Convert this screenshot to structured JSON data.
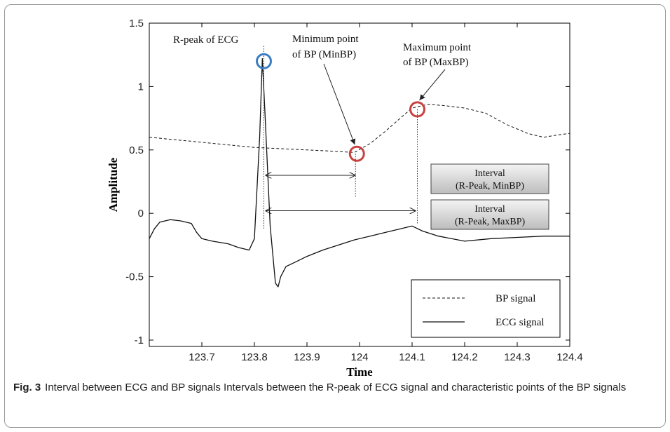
{
  "chart_data": {
    "type": "line",
    "xlabel": "Time",
    "ylabel": "Amplitude",
    "xlim": [
      123.6,
      124.4
    ],
    "ylim": [
      -1.05,
      1.5
    ],
    "xticks": [
      "123.7",
      "123.8",
      "123.9",
      "124",
      "124.1",
      "124.2",
      "124.3",
      "124.4"
    ],
    "yticks": [
      "1.5",
      "1",
      "0.5",
      "0",
      "-0.5",
      "-1"
    ],
    "series": [
      {
        "name": "BP signal",
        "style": "dashed",
        "x": [
          123.6,
          123.65,
          123.7,
          123.75,
          123.8,
          123.85,
          123.9,
          123.95,
          123.99,
          124.02,
          124.05,
          124.08,
          124.1,
          124.13,
          124.16,
          124.2,
          124.24,
          124.28,
          124.32,
          124.35,
          124.38,
          124.4
        ],
        "y": [
          0.6,
          0.58,
          0.56,
          0.54,
          0.52,
          0.51,
          0.5,
          0.49,
          0.48,
          0.55,
          0.65,
          0.76,
          0.83,
          0.86,
          0.85,
          0.83,
          0.79,
          0.7,
          0.63,
          0.6,
          0.62,
          0.63
        ]
      },
      {
        "name": "ECG signal",
        "style": "solid",
        "x": [
          123.6,
          123.61,
          123.62,
          123.64,
          123.66,
          123.68,
          123.69,
          123.7,
          123.72,
          123.75,
          123.77,
          123.79,
          123.8,
          123.81,
          123.815,
          123.82,
          123.83,
          123.84,
          123.845,
          123.85,
          123.86,
          123.88,
          123.9,
          123.93,
          123.96,
          123.99,
          124.02,
          124.05,
          124.08,
          124.1,
          124.12,
          124.15,
          124.2,
          124.25,
          124.3,
          124.35,
          124.4
        ],
        "y": [
          -0.2,
          -0.12,
          -0.07,
          -0.05,
          -0.06,
          -0.08,
          -0.15,
          -0.2,
          -0.22,
          -0.24,
          -0.27,
          -0.29,
          -0.2,
          0.6,
          1.22,
          0.8,
          -0.1,
          -0.55,
          -0.58,
          -0.5,
          -0.42,
          -0.38,
          -0.34,
          -0.29,
          -0.25,
          -0.21,
          -0.18,
          -0.15,
          -0.12,
          -0.1,
          -0.14,
          -0.18,
          -0.22,
          -0.2,
          -0.19,
          -0.18,
          -0.18
        ]
      }
    ],
    "markers": [
      {
        "label": "R-peak of ECG",
        "x": 123.818,
        "y": 1.2,
        "color": "#3b7dc4"
      },
      {
        "label": "Minimum point of BP (MinBP)",
        "x": 123.995,
        "y": 0.47,
        "color": "#c8403f"
      },
      {
        "label": "Maximum point of BP (MaxBP)",
        "x": 124.11,
        "y": 0.82,
        "color": "#c8403f"
      }
    ],
    "intervals": [
      {
        "label": "Interval (R-Peak, MinBP)",
        "x0": 123.818,
        "x1": 123.995,
        "y": 0.3
      },
      {
        "label": "Interval (R-Peak, MaxBP)",
        "x0": 123.818,
        "x1": 124.11,
        "y": 0.02
      }
    ],
    "annotations": {
      "rpeak": "R-peak of ECG",
      "minbp_line1": "Minimum point",
      "minbp_line2": "of BP (MinBP)",
      "maxbp_line1": "Maximum point",
      "maxbp_line2": "of BP (MaxBP)",
      "box1_line1": "Interval",
      "box1_line2": "(R-Peak, MinBP)",
      "box2_line1": "Interval",
      "box2_line2": "(R-Peak, MaxBP)"
    },
    "legend": {
      "placement": "bottom-right",
      "entries": [
        "BP signal",
        "ECG signal"
      ]
    }
  },
  "caption": {
    "label": "Fig. 3",
    "text": "Interval between ECG and BP signals Intervals between the R-peak of ECG signal and characteristic points of the BP signals"
  }
}
